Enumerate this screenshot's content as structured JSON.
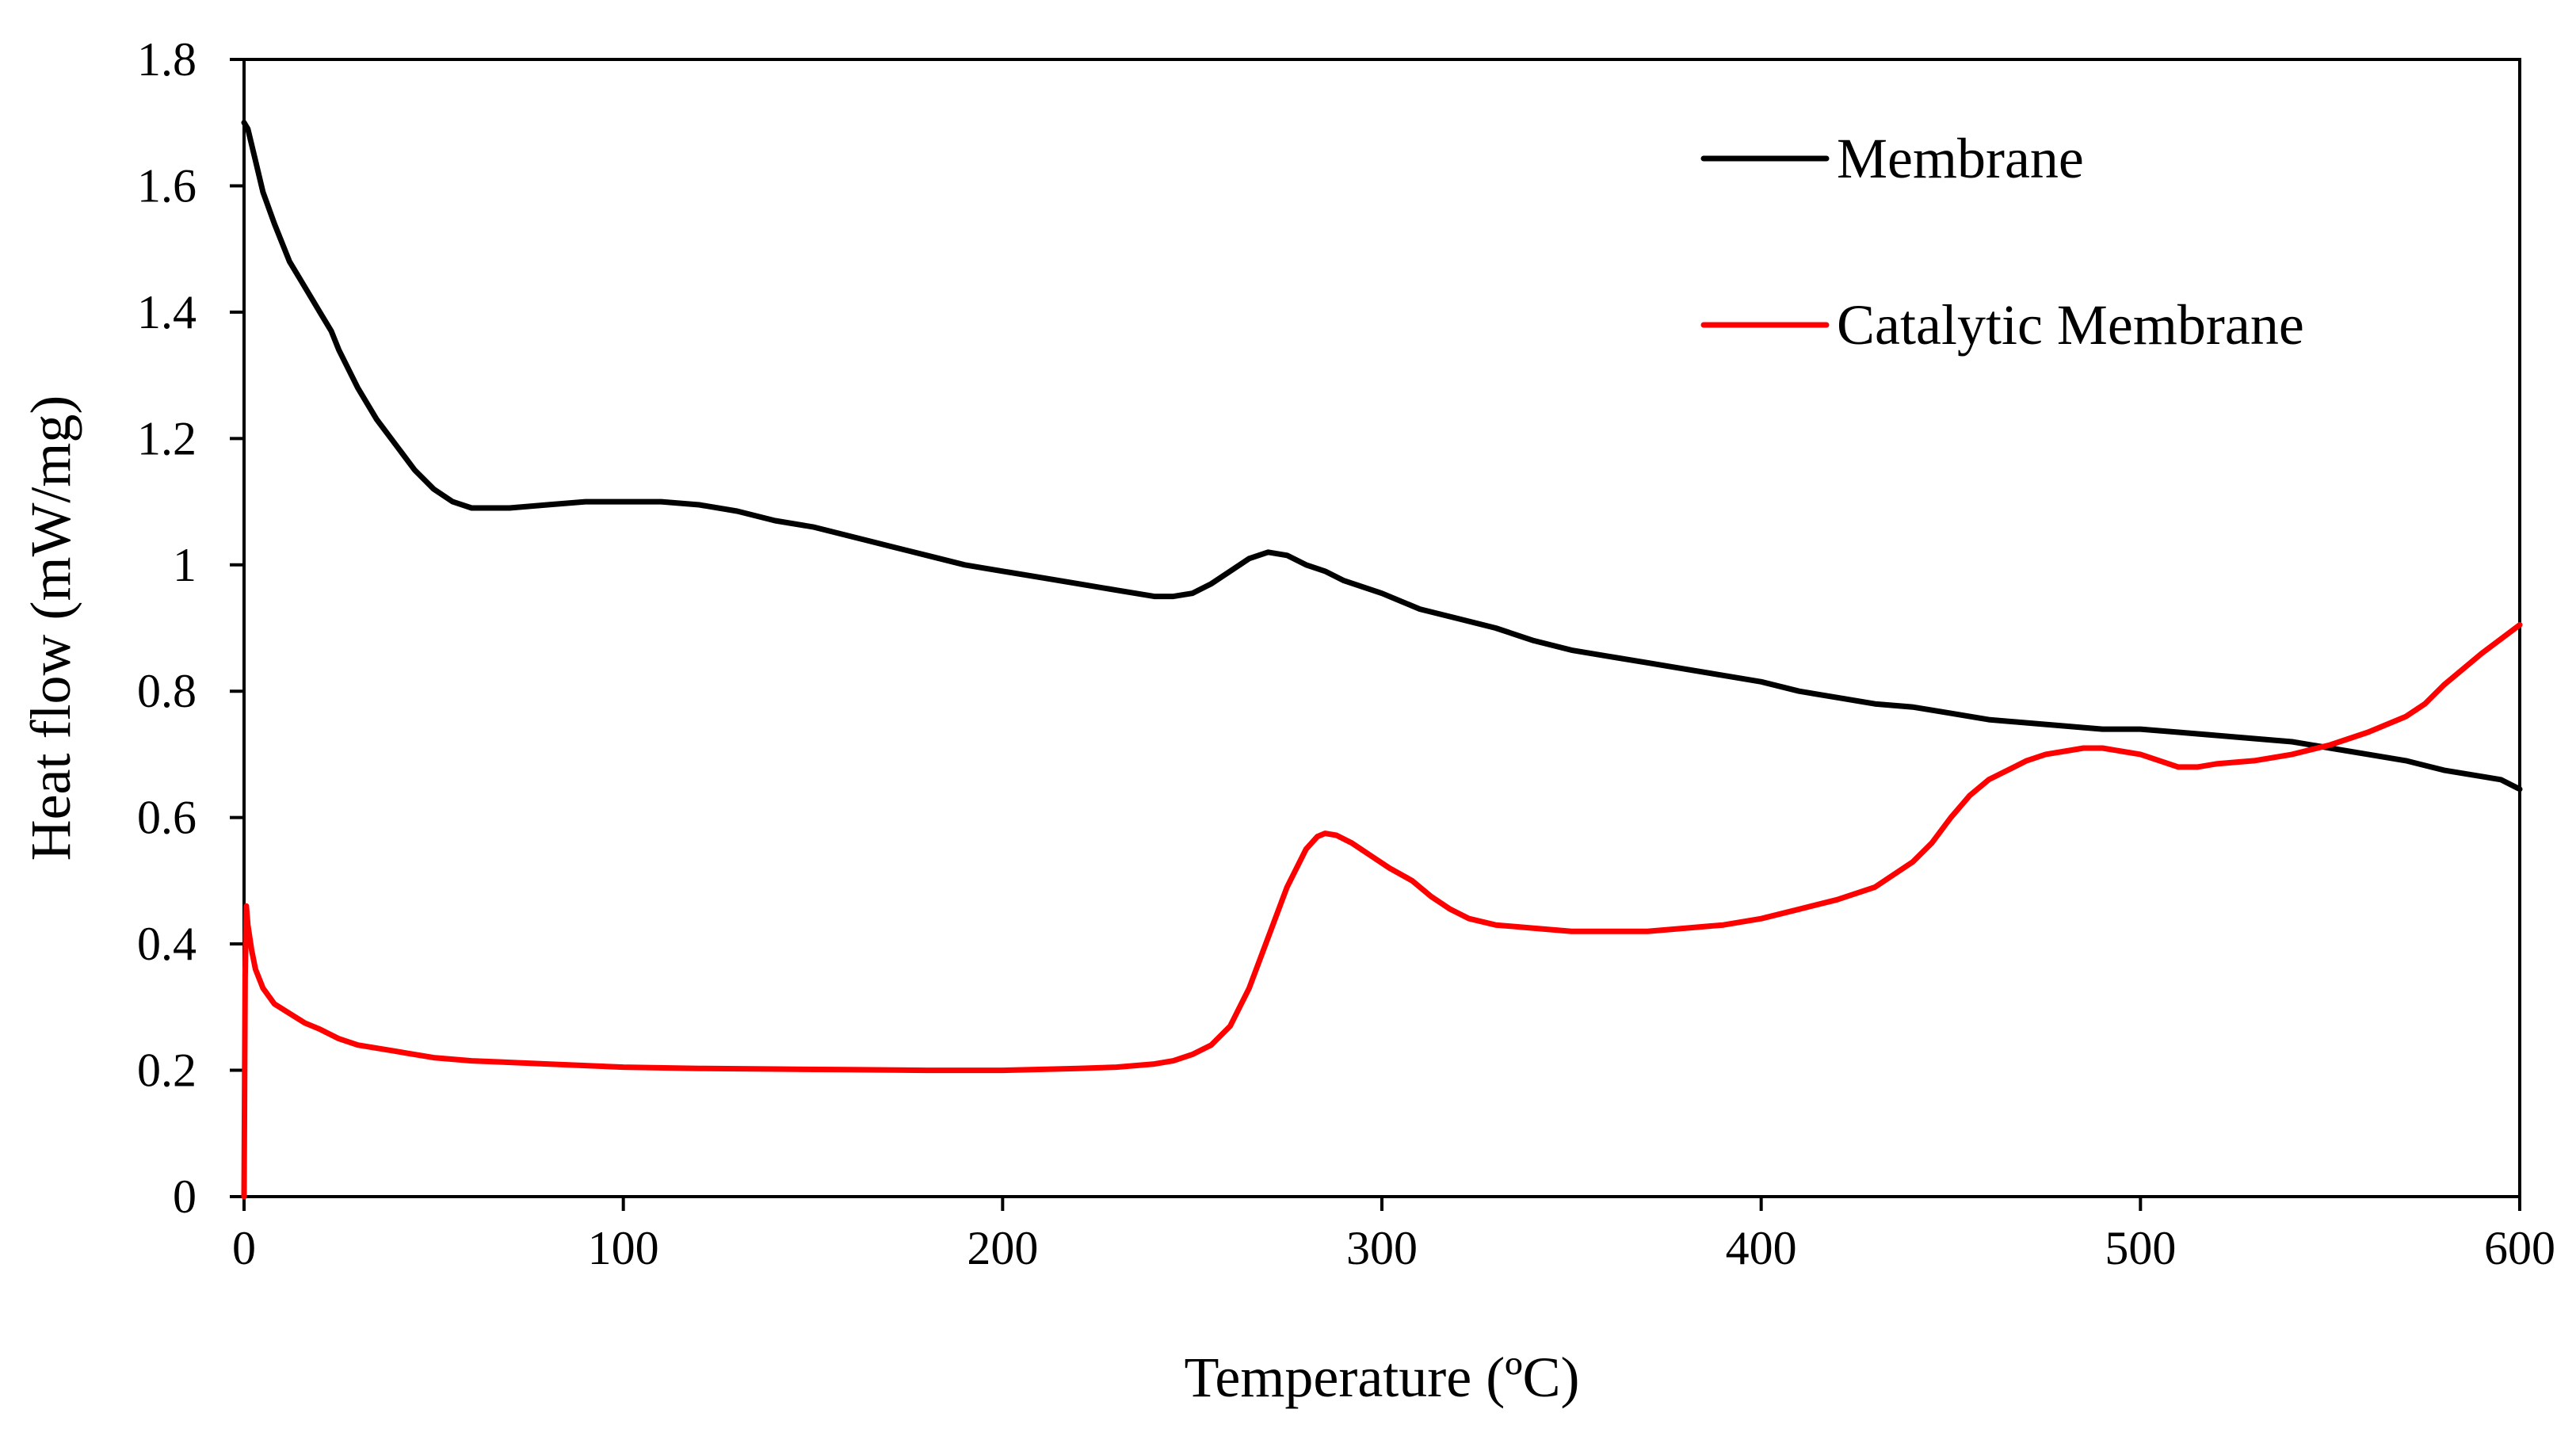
{
  "chart_data": {
    "type": "line",
    "title": "",
    "xlabel": "Temperature (ºC)",
    "ylabel": "Heat flow (mW/mg)",
    "xlim": [
      0,
      600
    ],
    "ylim": [
      0,
      1.8
    ],
    "xticks": [
      0,
      100,
      200,
      300,
      400,
      500,
      600
    ],
    "xtick_labels": [
      "0",
      "100",
      "200",
      "300",
      "400",
      "500",
      "600"
    ],
    "yticks": [
      0,
      0.2,
      0.4,
      0.6,
      0.8,
      1.0,
      1.2,
      1.4,
      1.6,
      1.8
    ],
    "ytick_labels": [
      "0",
      "0.2",
      "0.4",
      "0.6",
      "0.8",
      "1",
      "1.2",
      "1.4",
      "1.6",
      "1.8"
    ],
    "grid": false,
    "legend_position": "top-right",
    "series": [
      {
        "name": "Membrane",
        "color": "#000000",
        "x": [
          0,
          1,
          3,
          5,
          8,
          12,
          16,
          20,
          23,
          25,
          30,
          35,
          40,
          45,
          50,
          55,
          60,
          65,
          70,
          80,
          90,
          100,
          110,
          120,
          130,
          140,
          150,
          160,
          170,
          180,
          190,
          200,
          210,
          220,
          230,
          240,
          245,
          250,
          255,
          260,
          265,
          270,
          275,
          280,
          285,
          290,
          300,
          310,
          320,
          330,
          340,
          350,
          360,
          370,
          380,
          390,
          400,
          410,
          420,
          430,
          440,
          450,
          460,
          470,
          480,
          490,
          500,
          510,
          520,
          530,
          540,
          550,
          560,
          570,
          580,
          590,
          595,
          600
        ],
        "y": [
          1.7,
          1.69,
          1.64,
          1.59,
          1.54,
          1.48,
          1.44,
          1.4,
          1.37,
          1.34,
          1.28,
          1.23,
          1.19,
          1.15,
          1.12,
          1.1,
          1.09,
          1.09,
          1.09,
          1.095,
          1.1,
          1.1,
          1.1,
          1.095,
          1.085,
          1.07,
          1.06,
          1.045,
          1.03,
          1.015,
          1.0,
          0.99,
          0.98,
          0.97,
          0.96,
          0.95,
          0.95,
          0.955,
          0.97,
          0.99,
          1.01,
          1.02,
          1.015,
          1.0,
          0.99,
          0.975,
          0.955,
          0.93,
          0.915,
          0.9,
          0.88,
          0.865,
          0.855,
          0.845,
          0.835,
          0.825,
          0.815,
          0.8,
          0.79,
          0.78,
          0.775,
          0.765,
          0.755,
          0.75,
          0.745,
          0.74,
          0.74,
          0.735,
          0.73,
          0.725,
          0.72,
          0.71,
          0.7,
          0.69,
          0.675,
          0.665,
          0.66,
          0.645
        ]
      },
      {
        "name": "Catalytic Membrane",
        "color": "#ff0000",
        "x": [
          0,
          0.3,
          0.6,
          1,
          2,
          3,
          5,
          8,
          12,
          16,
          20,
          25,
          30,
          40,
          50,
          60,
          80,
          100,
          120,
          140,
          160,
          180,
          200,
          220,
          230,
          240,
          245,
          250,
          255,
          260,
          265,
          270,
          275,
          280,
          283,
          285,
          288,
          292,
          297,
          302,
          308,
          313,
          318,
          323,
          330,
          340,
          350,
          360,
          370,
          380,
          390,
          400,
          410,
          420,
          430,
          440,
          445,
          450,
          455,
          460,
          465,
          470,
          475,
          480,
          485,
          490,
          495,
          500,
          505,
          510,
          515,
          520,
          530,
          540,
          550,
          560,
          570,
          575,
          580,
          590,
          600
        ],
        "y": [
          0.0,
          0.35,
          0.46,
          0.43,
          0.39,
          0.36,
          0.33,
          0.305,
          0.29,
          0.275,
          0.265,
          0.25,
          0.24,
          0.23,
          0.22,
          0.215,
          0.21,
          0.205,
          0.203,
          0.202,
          0.201,
          0.2,
          0.2,
          0.203,
          0.205,
          0.21,
          0.215,
          0.225,
          0.24,
          0.27,
          0.33,
          0.41,
          0.49,
          0.55,
          0.57,
          0.575,
          0.572,
          0.56,
          0.54,
          0.52,
          0.5,
          0.475,
          0.455,
          0.44,
          0.43,
          0.425,
          0.42,
          0.42,
          0.42,
          0.425,
          0.43,
          0.44,
          0.455,
          0.47,
          0.49,
          0.53,
          0.56,
          0.6,
          0.635,
          0.66,
          0.675,
          0.69,
          0.7,
          0.705,
          0.71,
          0.71,
          0.705,
          0.7,
          0.69,
          0.68,
          0.68,
          0.685,
          0.69,
          0.7,
          0.715,
          0.735,
          0.76,
          0.78,
          0.81,
          0.86,
          0.905
        ]
      }
    ]
  }
}
